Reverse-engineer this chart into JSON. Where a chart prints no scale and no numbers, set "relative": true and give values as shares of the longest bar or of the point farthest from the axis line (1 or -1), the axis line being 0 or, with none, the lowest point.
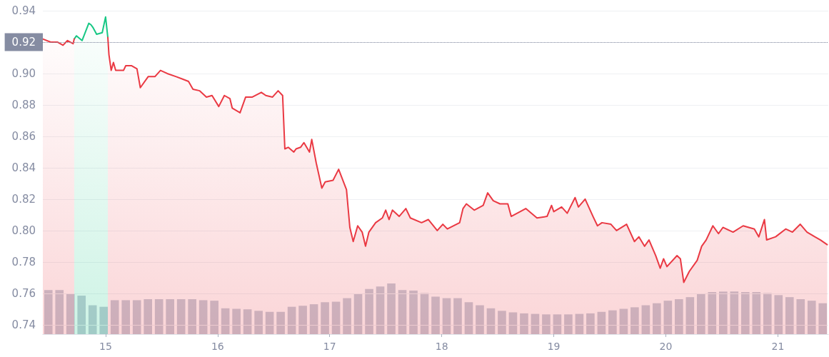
{
  "chart_data": [
    {
      "type": "area",
      "xlim": [
        14.44,
        21.45
      ],
      "xticks": [
        15,
        16,
        17,
        18,
        19,
        20,
        21
      ],
      "ylim": [
        0.734,
        0.94
      ],
      "yticks": [
        0.74,
        0.76,
        0.78,
        {
          "value": 0.8,
          "label": "0.80"
        },
        0.82,
        0.84,
        0.86,
        0.88,
        {
          "value": 0.9,
          "label": "0.90"
        },
        0.92,
        0.94
      ],
      "grid": "y",
      "marker": "none",
      "ref_lines": [
        {
          "axis": "y",
          "value": 0.92,
          "label": "0.92",
          "color": "#858ca2",
          "line_style": "dotted"
        }
      ],
      "series": [
        {
          "color": "#16c784",
          "x": [
            14.72,
            14.74,
            14.79,
            14.85,
            14.87,
            14.89,
            14.92,
            14.97,
            15.0,
            15.02
          ],
          "values": [
            0.922,
            0.924,
            0.921,
            0.932,
            0.931,
            0.929,
            0.925,
            0.926,
            0.936,
            0.923
          ]
        },
        {
          "color": "#ea3943",
          "x": [
            14.44,
            14.51,
            14.57,
            14.62,
            14.66,
            14.71,
            14.72,
            14.85,
            15.02,
            15.03,
            15.05,
            15.07,
            15.09,
            15.16,
            15.18,
            15.23,
            15.28,
            15.31,
            15.38,
            15.44,
            15.49,
            15.55,
            15.63,
            15.74,
            15.78,
            15.84,
            15.9,
            15.95,
            16.01,
            16.06,
            16.11,
            16.13,
            16.2,
            16.25,
            16.31,
            16.39,
            16.43,
            16.49,
            16.54,
            16.58,
            16.6,
            16.63,
            16.68,
            16.7,
            16.74,
            16.77,
            16.82,
            16.84,
            16.88,
            16.93,
            16.96,
            17.03,
            17.08,
            17.15,
            17.18,
            17.21,
            17.25,
            17.29,
            17.32,
            17.35,
            17.41,
            17.47,
            17.5,
            17.53,
            17.56,
            17.62,
            17.68,
            17.72,
            17.82,
            17.88,
            17.96,
            18.01,
            18.05,
            18.16,
            18.19,
            18.22,
            18.29,
            18.37,
            18.41,
            18.46,
            18.52,
            18.59,
            18.62,
            18.7,
            18.75,
            18.85,
            18.94,
            18.98,
            19.0,
            19.07,
            19.12,
            19.19,
            19.22,
            19.28,
            19.35,
            19.39,
            19.43,
            19.51,
            19.56,
            19.65,
            19.72,
            19.76,
            19.81,
            19.85,
            19.91,
            19.95,
            19.98,
            20.01,
            20.1,
            20.13,
            20.16,
            20.21,
            20.28,
            20.32,
            20.36,
            20.42,
            20.47,
            20.51,
            20.6,
            20.69,
            20.79,
            20.83,
            20.88,
            20.9,
            20.98,
            21.07,
            21.13,
            21.2,
            21.26,
            21.33,
            21.38,
            21.44
          ],
          "values": [
            0.922,
            0.92,
            0.92,
            0.918,
            0.921,
            0.919,
            0.922,
            null,
            0.923,
            0.912,
            0.902,
            0.907,
            0.902,
            0.902,
            0.905,
            0.905,
            0.903,
            0.891,
            0.898,
            0.898,
            0.902,
            0.9,
            0.898,
            0.895,
            0.89,
            0.889,
            0.885,
            0.886,
            0.879,
            0.886,
            0.884,
            0.878,
            0.875,
            0.885,
            0.885,
            0.888,
            0.886,
            0.885,
            0.889,
            0.886,
            0.852,
            0.853,
            0.85,
            0.852,
            0.853,
            0.856,
            0.85,
            0.858,
            0.843,
            0.827,
            0.831,
            0.832,
            0.839,
            0.826,
            0.802,
            0.793,
            0.803,
            0.799,
            0.79,
            0.799,
            0.805,
            0.808,
            0.813,
            0.807,
            0.813,
            0.809,
            0.814,
            0.808,
            0.805,
            0.807,
            0.8,
            0.804,
            0.801,
            0.805,
            0.814,
            0.817,
            0.813,
            0.816,
            0.824,
            0.819,
            0.817,
            0.817,
            0.809,
            0.812,
            0.814,
            0.808,
            0.809,
            0.816,
            0.812,
            0.815,
            0.811,
            0.821,
            0.815,
            0.82,
            0.809,
            0.803,
            0.805,
            0.804,
            0.8,
            0.804,
            0.793,
            0.796,
            0.79,
            0.794,
            0.784,
            0.776,
            0.782,
            0.777,
            0.784,
            0.782,
            0.767,
            0.774,
            0.781,
            0.79,
            0.794,
            0.803,
            0.798,
            0.802,
            0.799,
            0.803,
            0.801,
            0.796,
            0.807,
            0.794,
            0.796,
            0.801,
            0.799,
            0.804,
            0.799,
            0.796,
            0.794,
            0.791
          ]
        }
      ]
    },
    {
      "type": "bar",
      "relative": true,
      "color": "#c6ccd8",
      "categories": [
        null,
        null,
        null,
        null,
        null,
        null,
        null,
        null,
        null,
        null,
        null,
        null,
        null,
        null,
        null,
        null,
        null,
        null,
        null,
        null,
        null,
        null,
        null,
        null,
        null,
        null,
        null,
        null,
        null,
        null,
        null,
        null,
        null,
        null,
        null,
        null,
        null,
        null,
        null,
        null,
        null,
        null,
        null,
        null,
        null,
        null,
        null,
        null,
        null,
        null,
        null,
        null,
        null,
        null,
        null,
        null,
        null,
        null,
        null,
        null,
        null,
        null,
        null,
        null,
        null,
        null,
        null,
        null,
        null,
        null,
        null
      ],
      "values": [
        0.87,
        0.87,
        0.8,
        0.76,
        0.57,
        0.54,
        0.67,
        0.67,
        0.67,
        0.69,
        0.69,
        0.69,
        0.69,
        0.69,
        0.67,
        0.66,
        0.51,
        0.5,
        0.49,
        0.46,
        0.44,
        0.44,
        0.54,
        0.56,
        0.59,
        0.63,
        0.64,
        0.71,
        0.8,
        0.89,
        0.94,
        1,
        0.87,
        0.86,
        0.81,
        0.74,
        0.71,
        0.71,
        0.63,
        0.57,
        0.51,
        0.46,
        0.43,
        0.41,
        0.4,
        0.39,
        0.39,
        0.39,
        0.4,
        0.41,
        0.44,
        0.47,
        0.5,
        0.53,
        0.57,
        0.61,
        0.66,
        0.69,
        0.73,
        0.79,
        0.83,
        0.84,
        0.84,
        0.83,
        0.83,
        0.81,
        0.77,
        0.73,
        0.69,
        0.66,
        0.61
      ]
    }
  ]
}
